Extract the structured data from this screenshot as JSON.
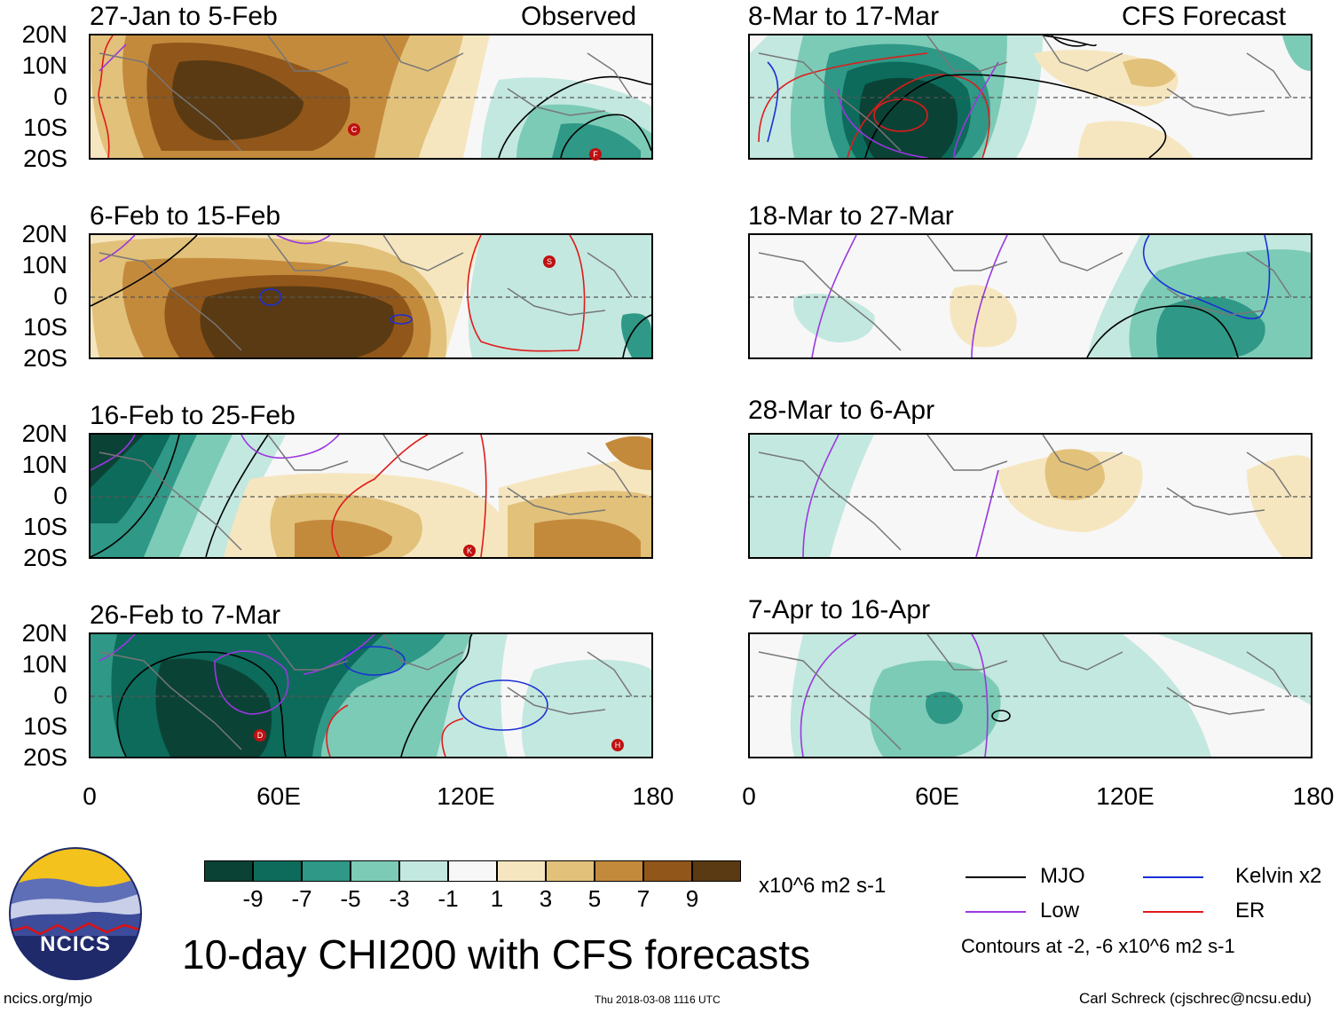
{
  "title": "10-day CHI200 with CFS forecasts",
  "observed_label": "Observed",
  "forecast_label": "CFS Forecast",
  "panels": [
    {
      "period": "27-Jan to 5-Feb",
      "kind": "observed"
    },
    {
      "period": "6-Feb to 15-Feb",
      "kind": "observed"
    },
    {
      "period": "16-Feb to 25-Feb",
      "kind": "observed"
    },
    {
      "period": "26-Feb to 7-Mar",
      "kind": "observed"
    },
    {
      "period": "8-Mar to 17-Mar",
      "kind": "forecast"
    },
    {
      "period": "18-Mar to 27-Mar",
      "kind": "forecast"
    },
    {
      "period": "28-Mar to 6-Apr",
      "kind": "forecast"
    },
    {
      "period": "7-Apr to 16-Apr",
      "kind": "forecast"
    }
  ],
  "lat_labels": [
    "20N",
    "10N",
    "0",
    "10S",
    "20S"
  ],
  "lon_labels": [
    "0",
    "60E",
    "120E",
    "180"
  ],
  "colorbar": {
    "units": "x10^6 m2 s-1",
    "tick_labels": [
      "-9",
      "-7",
      "-5",
      "-3",
      "-1",
      "1",
      "3",
      "5",
      "7",
      "9"
    ],
    "colors": [
      "#0b4236",
      "#0d6b5b",
      "#2f9886",
      "#7ccbb7",
      "#c3e8df",
      "#f7f7f7",
      "#f6e6bf",
      "#e2c17b",
      "#c48a3c",
      "#91561a",
      "#5a3a12"
    ]
  },
  "legend": {
    "items": [
      {
        "label": "MJO",
        "color": "#000000"
      },
      {
        "label": "Kelvin x2",
        "color": "#1a2fd6"
      },
      {
        "label": "Low",
        "color": "#9a38e0"
      },
      {
        "label": "ER",
        "color": "#e01b1b"
      }
    ],
    "contours_note": "Contours at -2, -6 x10^6 m2 s-1"
  },
  "storm_markers": [
    "C",
    "F",
    "S",
    "K",
    "D",
    "H"
  ],
  "logo_text": "NCICS",
  "footer": {
    "url": "ncics.org/mjo",
    "timestamp": "Thu 2018-03-08 1116 UTC",
    "credit": "Carl Schreck (cjschrec@ncsu.edu)"
  }
}
